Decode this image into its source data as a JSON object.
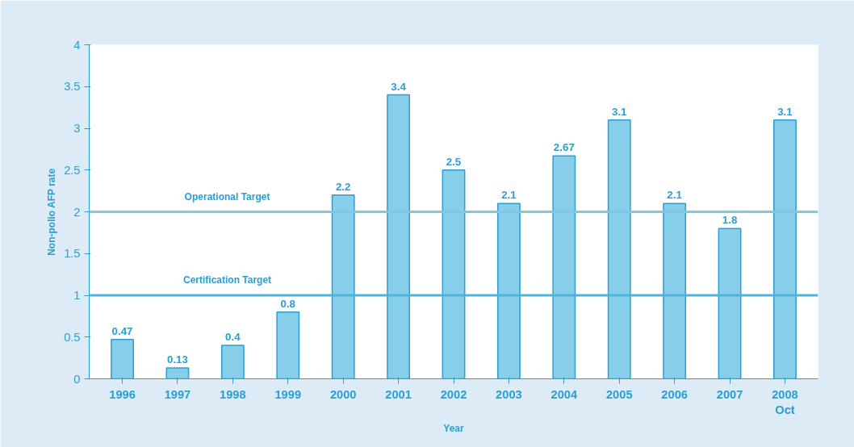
{
  "chart_data": {
    "type": "bar",
    "xlabel": "Year",
    "ylabel": "Non-polio AFP rate",
    "categories": [
      "1996",
      "1997",
      "1998",
      "1999",
      "2000",
      "2001",
      "2002",
      "2003",
      "2004",
      "2005",
      "2006",
      "2007",
      "2008\nOct"
    ],
    "values": [
      0.47,
      0.13,
      0.4,
      0.8,
      2.2,
      3.4,
      2.5,
      2.1,
      2.67,
      3.1,
      2.1,
      1.8,
      3.1
    ],
    "color": "#87ceeb",
    "data_labels": true,
    "ylim": [
      0,
      4
    ],
    "yticks": [
      0,
      0.5,
      1,
      1.5,
      2,
      2.5,
      3,
      3.5,
      4
    ],
    "ref_lines": [
      {
        "axis": "y",
        "value": 2,
        "label": "Operational Target",
        "color": "#7ec8e3"
      },
      {
        "axis": "y",
        "value": 1,
        "label": "Certification Target",
        "color": "#4fb3d9"
      }
    ]
  }
}
